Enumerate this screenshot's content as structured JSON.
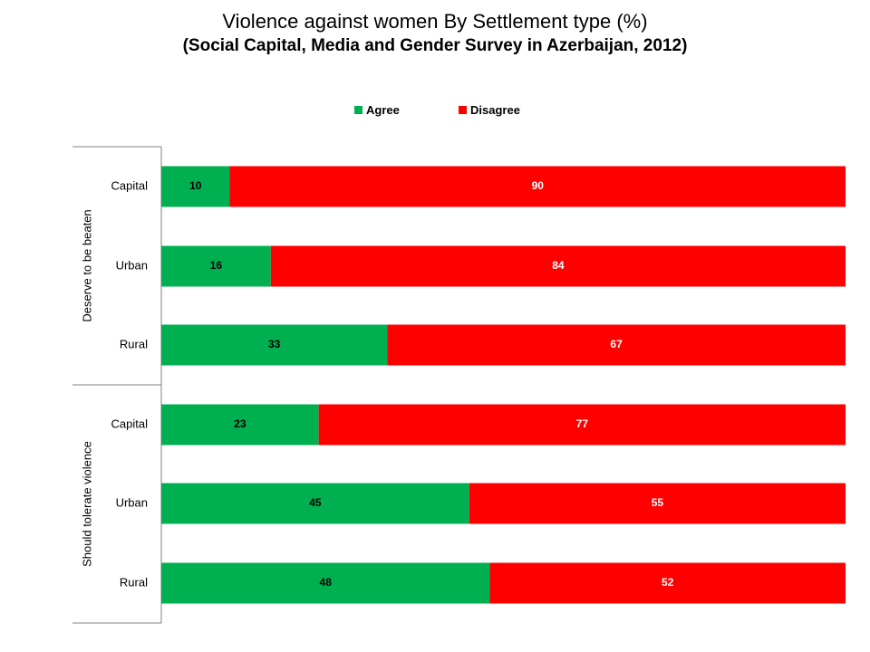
{
  "title": "Violence against women By Settlement type (%)",
  "subtitle": "(Social Capital, Media and Gender Survey in Azerbaijan, 2012)",
  "colors": {
    "agree": "#00b050",
    "disagree": "#ff0000",
    "axis": "#808080"
  },
  "chart_data": {
    "type": "bar",
    "orientation": "horizontal",
    "stacked": true,
    "title": "Violence against women By Settlement type (%)",
    "subtitle": "(Social Capital, Media and Gender Survey in Azerbaijan, 2012)",
    "legend": [
      "Agree",
      "Disagree"
    ],
    "legend_position": "top",
    "groups": [
      {
        "name": "Deserve to be beaten",
        "categories": [
          "Capital",
          "Urban",
          "Rural"
        ]
      },
      {
        "name": "Should tolerate violence",
        "categories": [
          "Capital",
          "Urban",
          "Rural"
        ]
      }
    ],
    "series": [
      {
        "name": "Agree",
        "values": [
          10,
          16,
          33,
          23,
          45,
          48
        ]
      },
      {
        "name": "Disagree",
        "values": [
          90,
          84,
          67,
          77,
          55,
          52
        ]
      }
    ],
    "xlim": [
      0,
      100
    ],
    "grid": false
  }
}
